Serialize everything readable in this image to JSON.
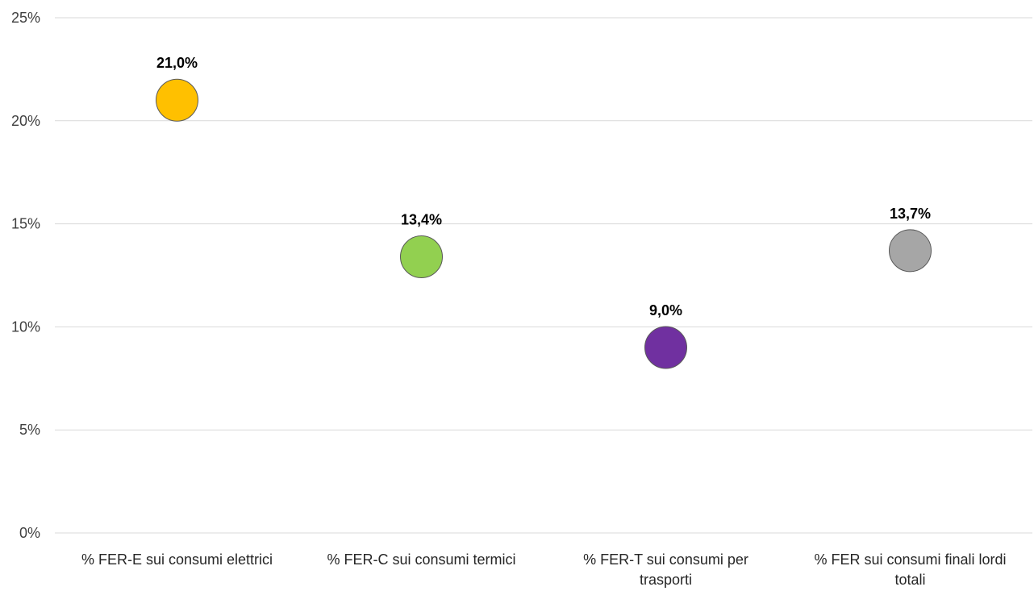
{
  "chart_data": {
    "type": "scatter",
    "categories": [
      "% FER-E sui consumi elettrici",
      "% FER-C sui consumi termici",
      "% FER-T sui consumi per trasporti",
      "% FER sui consumi finali lordi totali"
    ],
    "values": [
      21.0,
      13.4,
      9.0,
      13.7
    ],
    "data_labels": [
      "21,0%",
      "13,4%",
      "9,0%",
      "13,7%"
    ],
    "colors": [
      "#ffc000",
      "#92d050",
      "#7030a0",
      "#a6a6a6"
    ],
    "ylim": [
      0,
      25
    ],
    "y_ticks": [
      0,
      5,
      10,
      15,
      20,
      25
    ],
    "y_tick_labels": [
      "0%",
      "5%",
      "10%",
      "15%",
      "20%",
      "25%"
    ],
    "grid": true,
    "legend": "none"
  }
}
